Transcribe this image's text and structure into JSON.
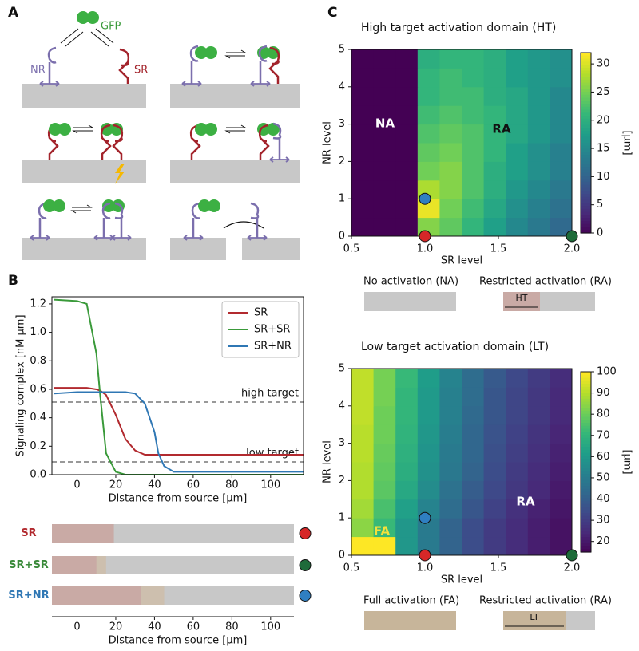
{
  "panel_labels": [
    "A",
    "B",
    "C"
  ],
  "panel_a": {
    "gfp": "GFP",
    "nr": "NR",
    "sr": "SR"
  },
  "chart_data": [
    {
      "type": "line",
      "ylabel": "Signaling complex [nM μm]",
      "xlabel": "Distance from source [μm]",
      "x": [
        -12,
        0,
        5,
        10,
        12,
        15,
        20,
        25,
        30,
        35,
        40,
        42,
        45,
        50,
        60,
        80,
        100,
        117
      ],
      "series": [
        {
          "name": "SR",
          "color": "#b22a2f",
          "values": [
            0.61,
            0.61,
            0.61,
            0.6,
            0.59,
            0.56,
            0.42,
            0.25,
            0.17,
            0.14,
            0.14,
            0.14,
            0.14,
            0.14,
            0.14,
            0.14,
            0.14,
            0.14
          ]
        },
        {
          "name": "SR+SR",
          "color": "#3a9a3a",
          "values": [
            1.23,
            1.22,
            1.2,
            0.85,
            0.55,
            0.15,
            0.02,
            0,
            0,
            0,
            0,
            0,
            0,
            0,
            0,
            0,
            0,
            0
          ]
        },
        {
          "name": "SR+NR",
          "color": "#2f77b4",
          "values": [
            0.57,
            0.58,
            0.58,
            0.58,
            0.58,
            0.58,
            0.58,
            0.58,
            0.57,
            0.5,
            0.3,
            0.15,
            0.06,
            0.02,
            0.02,
            0.02,
            0.02,
            0.02
          ]
        }
      ],
      "xlim": [
        -13,
        117
      ],
      "ylim": [
        0,
        1.25
      ],
      "xticks": [
        0,
        20,
        40,
        60,
        80,
        100
      ],
      "yticks": [
        {
          "value": 0,
          "label": "0.0"
        },
        {
          "value": 0.2,
          "label": "0.2"
        },
        {
          "value": 0.4,
          "label": "0.4"
        },
        {
          "value": 0.6,
          "label": "0.6"
        },
        {
          "value": 0.8,
          "label": "0.8"
        },
        {
          "value": 1.0,
          "label": "1.0"
        },
        {
          "value": 1.2,
          "label": "1.2"
        }
      ],
      "reference_lines": [
        {
          "label": "high target",
          "value": 0.51
        },
        {
          "label": "low target",
          "value": 0.09
        }
      ],
      "vline": 0,
      "legend": "upper right"
    },
    {
      "type": "range_bar",
      "xlabel": "Distance from source [μm]",
      "categories": [
        "SR",
        "SR+SR",
        "SR+NR"
      ],
      "label_colors": [
        "#b22a2f",
        "#3a8a3a",
        "#2f77b4"
      ],
      "dot_colors": [
        "#d62728",
        "#1e6b3a",
        "#2f7fc1"
      ],
      "high_target_extent": [
        19,
        10,
        33
      ],
      "low_target_extent": [
        19,
        15,
        45
      ],
      "xlim": [
        -13,
        117
      ],
      "xticks": [
        0,
        20,
        40,
        60,
        80,
        100
      ],
      "vline": 0
    },
    {
      "type": "heatmap",
      "title": "High target activation domain (HT)",
      "xlabel": "SR level",
      "ylabel": "NR level",
      "colorbar_label": "[μm]",
      "x": [
        0.575,
        0.725,
        0.875,
        1.025,
        1.175,
        1.325,
        1.475,
        1.625,
        1.775,
        1.925
      ],
      "y": [
        0.25,
        0.75,
        1.25,
        1.75,
        2.25,
        2.75,
        3.25,
        3.75,
        4.25,
        4.75
      ],
      "z": [
        [
          0,
          0,
          0,
          26,
          24,
          21,
          18,
          15,
          13,
          11
        ],
        [
          0,
          0,
          0,
          31,
          25,
          22,
          19,
          16,
          14,
          12
        ],
        [
          0,
          0,
          0,
          28,
          26,
          23,
          20,
          17,
          15,
          13
        ],
        [
          0,
          0,
          0,
          25,
          26,
          23,
          20,
          18,
          16,
          14
        ],
        [
          0,
          0,
          0,
          24,
          25,
          23,
          21,
          18,
          16,
          14
        ],
        [
          0,
          0,
          0,
          23,
          24,
          23,
          21,
          19,
          17,
          15
        ],
        [
          0,
          0,
          0,
          22,
          23,
          22,
          21,
          19,
          17,
          15
        ],
        [
          0,
          0,
          0,
          21,
          22,
          22,
          20,
          19,
          17,
          15
        ],
        [
          0,
          0,
          0,
          21,
          22,
          21,
          20,
          18,
          17,
          16
        ],
        [
          0,
          0,
          0,
          20,
          21,
          21,
          20,
          18,
          17,
          16
        ]
      ],
      "xlim": [
        0.5,
        2.0
      ],
      "ylim": [
        0,
        5
      ],
      "zlim": [
        0,
        32
      ],
      "xticks": [
        {
          "value": 0.5,
          "label": "0.5"
        },
        {
          "value": 1.0,
          "label": "1.0"
        },
        {
          "value": 1.5,
          "label": "1.5"
        },
        {
          "value": 2.0,
          "label": "2.0"
        }
      ],
      "yticks": [
        0,
        1,
        2,
        3,
        4,
        5
      ],
      "zticks": [
        0,
        5,
        10,
        15,
        20,
        25,
        30
      ],
      "colormap": [
        "#440154",
        "#482878",
        "#3e4989",
        "#31688e",
        "#26828e",
        "#1f9e89",
        "#35b779",
        "#6ece58",
        "#b5de2b",
        "#fde725"
      ],
      "points": [
        {
          "x": 1.0,
          "y": 0,
          "color": "#d62728"
        },
        {
          "x": 2.0,
          "y": 0,
          "color": "#1e6b3a"
        },
        {
          "x": 1.0,
          "y": 1.0,
          "color": "#2f7fc1"
        }
      ],
      "region_labels": [
        "NA",
        "RA"
      ],
      "activation_legend": [
        {
          "label": "No activation (NA)"
        },
        {
          "label": "Restricted activation (RA)",
          "inset": "HT"
        }
      ]
    },
    {
      "type": "heatmap",
      "title": "Low target activation domain (LT)",
      "xlabel": "SR level",
      "ylabel": "NR level",
      "colorbar_label": "[μm]",
      "x": [
        0.575,
        0.725,
        0.875,
        1.025,
        1.175,
        1.325,
        1.475,
        1.625,
        1.775,
        1.925
      ],
      "y": [
        0.25,
        0.75,
        1.25,
        1.75,
        2.25,
        2.75,
        3.25,
        3.75,
        4.25,
        4.75
      ],
      "z": [
        [
          100,
          100,
          60,
          50,
          42,
          35,
          30,
          26,
          22,
          19
        ],
        [
          85,
          72,
          60,
          50,
          42,
          35,
          30,
          26,
          22,
          19
        ],
        [
          88,
          75,
          63,
          53,
          45,
          38,
          32,
          27,
          23,
          20
        ],
        [
          90,
          78,
          66,
          56,
          47,
          40,
          34,
          29,
          25,
          21
        ],
        [
          90,
          79,
          68,
          58,
          49,
          42,
          35,
          30,
          26,
          22
        ],
        [
          91,
          80,
          69,
          59,
          50,
          43,
          36,
          31,
          27,
          23
        ],
        [
          91,
          81,
          70,
          60,
          51,
          43,
          37,
          32,
          28,
          24
        ],
        [
          92,
          81,
          71,
          61,
          52,
          44,
          38,
          33,
          29,
          25
        ],
        [
          92,
          82,
          71,
          61,
          52,
          45,
          38,
          33,
          29,
          25
        ],
        [
          92,
          82,
          72,
          62,
          53,
          45,
          39,
          34,
          30,
          26
        ]
      ],
      "xlim": [
        0.5,
        2.0
      ],
      "ylim": [
        0,
        5
      ],
      "zlim": [
        15,
        100
      ],
      "xticks": [
        {
          "value": 0.5,
          "label": "0.5"
        },
        {
          "value": 1.0,
          "label": "1.0"
        },
        {
          "value": 1.5,
          "label": "1.5"
        },
        {
          "value": 2.0,
          "label": "2.0"
        }
      ],
      "yticks": [
        0,
        1,
        2,
        3,
        4,
        5
      ],
      "zticks": [
        20,
        30,
        40,
        50,
        60,
        70,
        80,
        90,
        100
      ],
      "colormap": [
        "#440154",
        "#482878",
        "#3e4989",
        "#31688e",
        "#26828e",
        "#1f9e89",
        "#35b779",
        "#6ece58",
        "#b5de2b",
        "#fde725"
      ],
      "points": [
        {
          "x": 1.0,
          "y": 0,
          "color": "#d62728"
        },
        {
          "x": 2.0,
          "y": 0,
          "color": "#1e6b3a"
        },
        {
          "x": 1.0,
          "y": 1.0,
          "color": "#2f7fc1"
        }
      ],
      "region_labels": [
        "FA",
        "RA"
      ],
      "activation_legend": [
        {
          "label": "Full activation (FA)"
        },
        {
          "label": "Restricted activation (RA)",
          "inset": "LT"
        }
      ]
    }
  ]
}
